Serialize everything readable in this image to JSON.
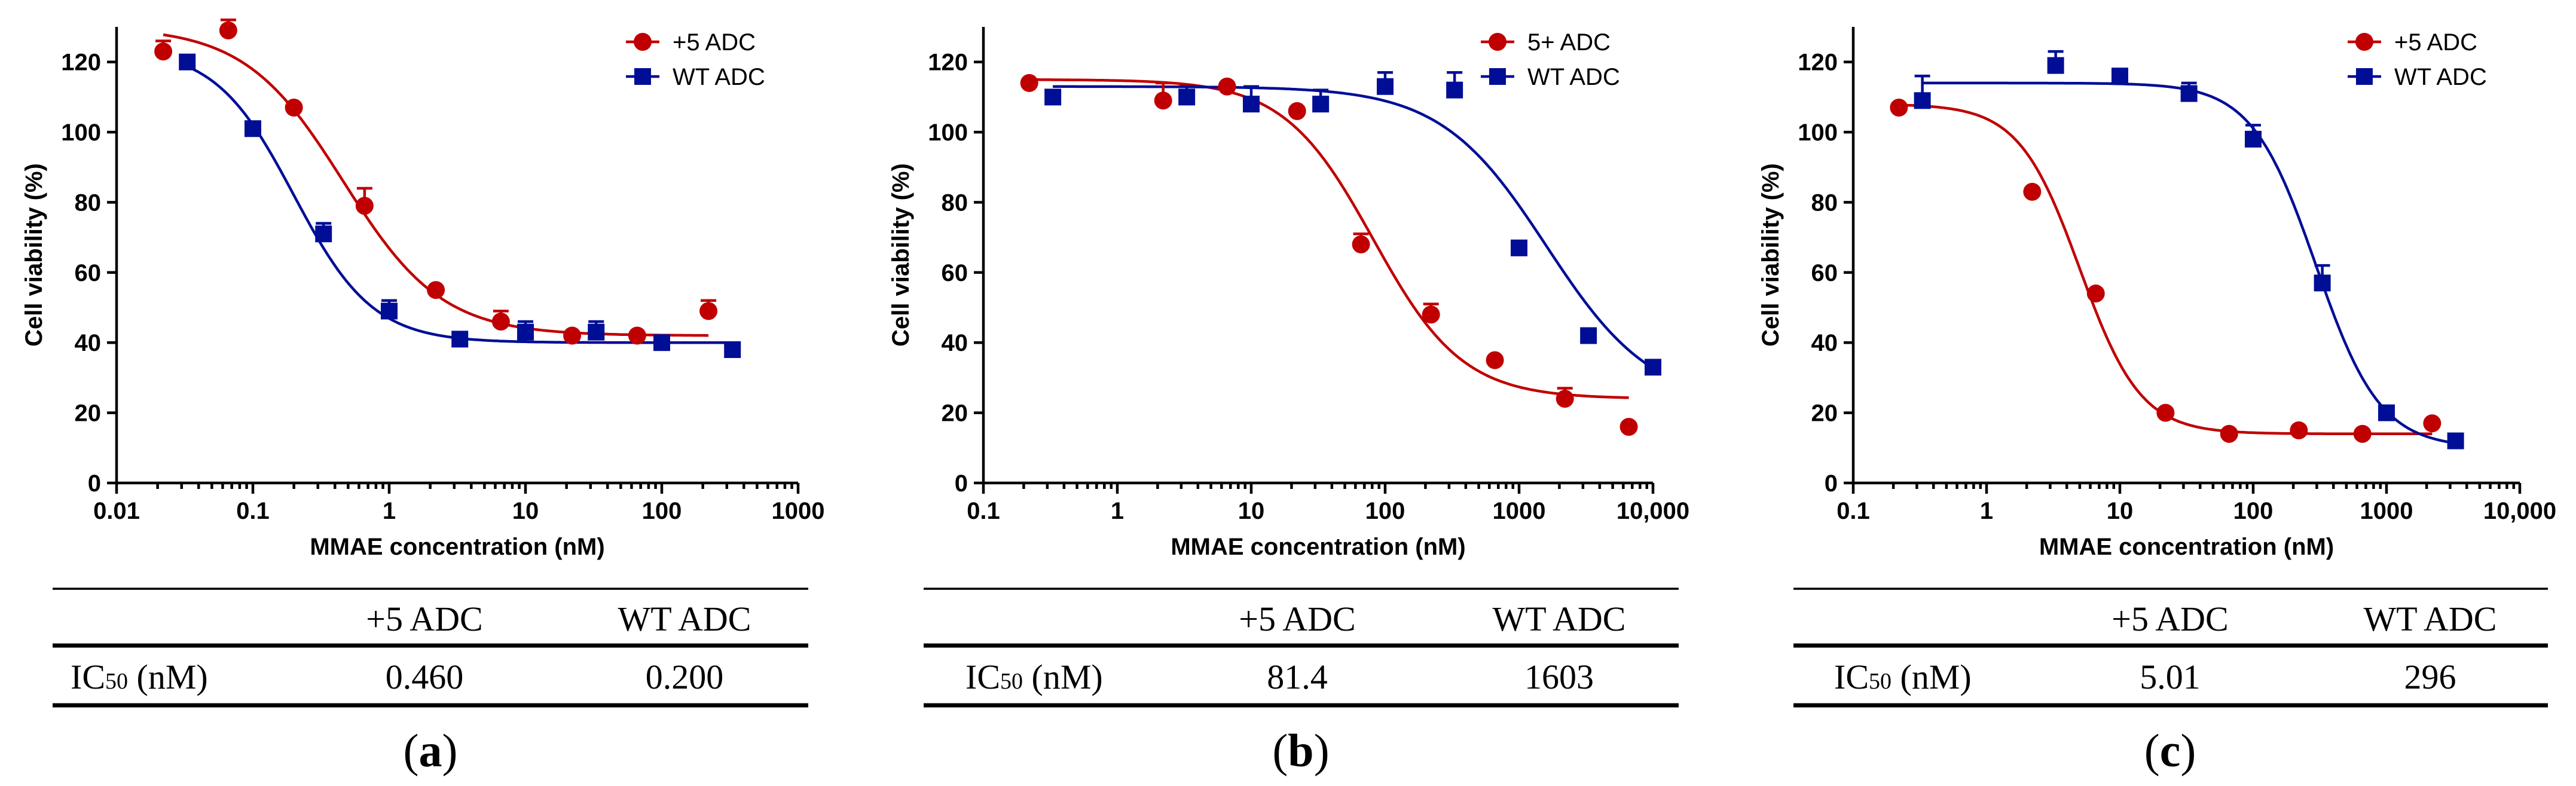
{
  "colors": {
    "red": "#c00000",
    "blue": "#000e96",
    "axis": "#000000"
  },
  "chart_data": [
    {
      "type": "scatter",
      "panel_label": "a",
      "xscale": "log",
      "xlim": [
        0.01,
        1000
      ],
      "ylim": [
        0,
        130
      ],
      "xlabel": "MMAE concentration (nM)",
      "ylabel": "Cell viability (%)",
      "xticks": [
        0.01,
        0.1,
        1,
        10,
        100,
        1000
      ],
      "xtick_labels": [
        "0.01",
        "0.1",
        "1",
        "10",
        "100",
        "1000"
      ],
      "yticks": [
        0,
        20,
        40,
        60,
        80,
        100,
        120
      ],
      "ytick_labels": [
        "0",
        "20",
        "40",
        "60",
        "80",
        "100",
        "120"
      ],
      "legend_position": "top-right",
      "series": [
        {
          "name": "+5 ADC",
          "marker": "circle",
          "color": "#c00000",
          "x": [
            0.022,
            0.066,
            0.2,
            0.66,
            2.2,
            6.6,
            22,
            66,
            220
          ],
          "y": [
            123,
            129,
            107,
            79,
            55,
            46,
            42,
            42,
            49
          ],
          "err": [
            3,
            3,
            1,
            5,
            1,
            3,
            1,
            1,
            3
          ],
          "fit": {
            "top": 130,
            "bottom": 42,
            "ic50": 0.46,
            "hill": 1.2
          }
        },
        {
          "name": "WT ADC",
          "marker": "square",
          "color": "#000e96",
          "x": [
            0.033,
            0.1,
            0.33,
            1,
            3.3,
            10,
            33,
            100,
            330
          ],
          "y": [
            120,
            101,
            71,
            49,
            41,
            43,
            43,
            40,
            38
          ],
          "err": [
            1,
            1,
            3,
            3,
            1,
            3,
            3,
            1,
            1
          ],
          "fit": {
            "top": 124,
            "bottom": 40,
            "ic50": 0.2,
            "hill": 1.5
          }
        }
      ],
      "table": {
        "header": [
          "+5 ADC",
          "WT ADC"
        ],
        "row_label": "IC",
        "row_sub": "50",
        "row_unit": " (nM)",
        "values": [
          "0.460",
          "0.200"
        ]
      }
    },
    {
      "type": "scatter",
      "panel_label": "b",
      "xscale": "log",
      "xlim": [
        0.1,
        10000
      ],
      "ylim": [
        0,
        130
      ],
      "xlabel": "MMAE concentration (nM)",
      "ylabel": "Cell viability (%)",
      "xticks": [
        0.1,
        1,
        10,
        100,
        1000,
        10000
      ],
      "xtick_labels": [
        "0.1",
        "1",
        "10",
        "100",
        "1000",
        "10,000"
      ],
      "yticks": [
        0,
        20,
        40,
        60,
        80,
        100,
        120
      ],
      "ytick_labels": [
        "0",
        "20",
        "40",
        "60",
        "80",
        "100",
        "120"
      ],
      "legend_position": "top-right",
      "series": [
        {
          "name": "5+ ADC",
          "marker": "circle",
          "color": "#c00000",
          "x": [
            0.22,
            2.2,
            6.6,
            22,
            66,
            220,
            660,
            2200,
            6600
          ],
          "y": [
            114,
            109,
            113,
            106,
            68,
            48,
            35,
            24,
            16
          ],
          "err": [
            1,
            5,
            1,
            1,
            3,
            3,
            1,
            3,
            1
          ],
          "fit": {
            "top": 115,
            "bottom": 24,
            "ic50": 81.4,
            "hill": 1.3
          }
        },
        {
          "name": "WT ADC",
          "marker": "square",
          "color": "#000e96",
          "x": [
            0.33,
            3.3,
            10,
            33,
            100,
            330,
            1000,
            3300,
            10000
          ],
          "y": [
            110,
            110,
            108,
            108,
            113,
            112,
            67,
            42,
            33
          ],
          "err": [
            1,
            3,
            5,
            4,
            4,
            5,
            1,
            1,
            1
          ],
          "fit": {
            "top": 113,
            "bottom": 22,
            "ic50": 1603,
            "hill": 1.1
          }
        }
      ],
      "table": {
        "header": [
          "+5 ADC",
          "WT ADC"
        ],
        "row_label": "IC",
        "row_sub": "50",
        "row_unit": " (nM)",
        "values": [
          "81.4",
          "1603"
        ]
      }
    },
    {
      "type": "scatter",
      "panel_label": "c",
      "xscale": "log",
      "xlim": [
        0.1,
        10000
      ],
      "ylim": [
        0,
        130
      ],
      "xlabel": "MMAE concentration (nM)",
      "ylabel": "Cell viability (%)",
      "xticks": [
        0.1,
        1,
        10,
        100,
        1000,
        10000
      ],
      "xtick_labels": [
        "0.1",
        "1",
        "10",
        "100",
        "1000",
        "10,000"
      ],
      "yticks": [
        0,
        20,
        40,
        60,
        80,
        100,
        120
      ],
      "ytick_labels": [
        "0",
        "20",
        "40",
        "60",
        "80",
        "100",
        "120"
      ],
      "legend_position": "top-right",
      "series": [
        {
          "name": "+5 ADC",
          "marker": "circle",
          "color": "#c00000",
          "x": [
            0.22,
            2.2,
            6.6,
            22,
            66,
            220,
            660,
            2200
          ],
          "y": [
            107,
            83,
            54,
            20,
            14,
            15,
            14,
            17
          ],
          "err": [
            1,
            1,
            1,
            1,
            1,
            1,
            1,
            1
          ],
          "fit": {
            "top": 108,
            "bottom": 14,
            "ic50": 5.01,
            "hill": 1.9
          }
        },
        {
          "name": "WT ADC",
          "marker": "square",
          "color": "#000e96",
          "x": [
            0.33,
            3.3,
            10,
            33,
            100,
            330,
            1000,
            3300
          ],
          "y": [
            109,
            119,
            116,
            111,
            98,
            57,
            20,
            12
          ],
          "err": [
            7,
            4,
            1,
            3,
            4,
            5,
            1,
            1
          ],
          "fit": {
            "top": 114,
            "bottom": 10,
            "ic50": 296,
            "hill": 1.8
          }
        }
      ],
      "table": {
        "header": [
          "+5 ADC",
          "WT ADC"
        ],
        "row_label": "IC",
        "row_sub": "50",
        "row_unit": " (nM)",
        "values": [
          "5.01",
          "296"
        ]
      }
    }
  ]
}
